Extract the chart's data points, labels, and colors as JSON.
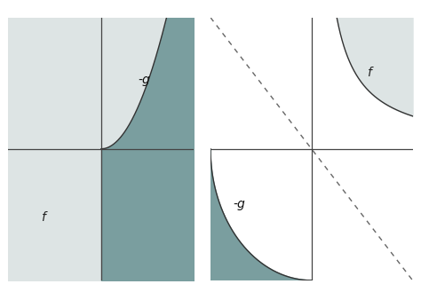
{
  "fig_width": 4.74,
  "fig_height": 3.29,
  "dpi": 100,
  "bg_color": "#ffffff",
  "light_fill": "#dde4e4",
  "dark_fill": "#7a9e9f",
  "axis_color": "#444444",
  "curve_color": "#333333",
  "dashed_color": "#666666",
  "label_f": "f",
  "label_neg_g": "-g"
}
